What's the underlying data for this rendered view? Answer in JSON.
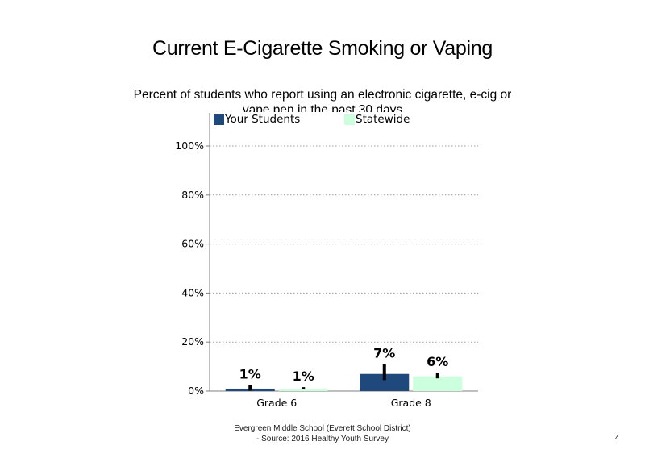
{
  "chart_data": {
    "type": "bar",
    "title": "Current E-Cigarette Smoking or Vaping",
    "subtitle": "Percent of students who report using an electronic cigarette, e-cig or vape pen in the past 30 days",
    "categories": [
      "Grade 6",
      "Grade 8"
    ],
    "series": [
      {
        "name": "Your Students",
        "color": "#1f497d",
        "values": [
          1,
          7
        ],
        "labels": [
          "1%",
          "7%"
        ],
        "error_low": [
          0.2,
          4.5
        ],
        "error_high": [
          2.5,
          11
        ]
      },
      {
        "name": "Statewide",
        "color": "#ccffdd",
        "values": [
          1,
          6
        ],
        "labels": [
          "1%",
          "6%"
        ],
        "error_low": [
          0.8,
          5.2
        ],
        "error_high": [
          1.6,
          7.5
        ]
      }
    ],
    "ylim": [
      0,
      100
    ],
    "yticks": [
      0,
      20,
      40,
      60,
      80,
      100
    ],
    "ytick_labels": [
      "0%",
      "20%",
      "40%",
      "60%",
      "80%",
      "100%"
    ],
    "grid": true,
    "legend_position": "top"
  },
  "footer": {
    "line1": "Evergreen Middle School (Everett School District)",
    "line2": "- Source: 2016 Healthy  Youth Survey"
  },
  "page_number": "4"
}
